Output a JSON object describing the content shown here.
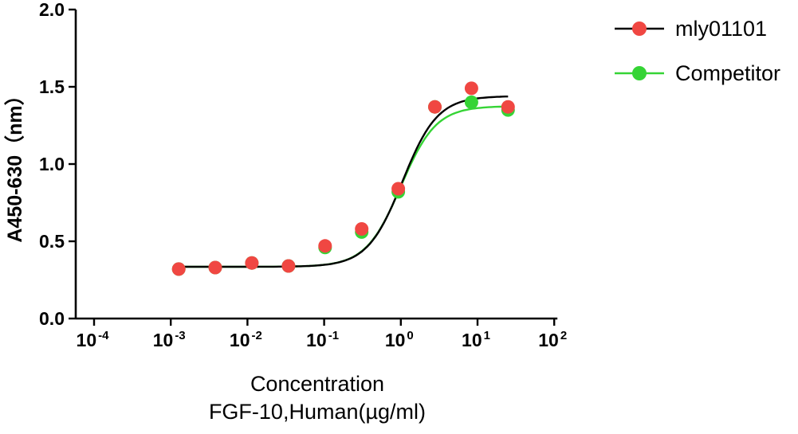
{
  "chart_data": {
    "type": "scatter",
    "title": "",
    "xlabel_line1": "Concentration",
    "xlabel_line2": "FGF-10,Human(µg/ml)",
    "ylabel": "A450-630（nm）",
    "x_scale": "log10",
    "x_min_exp": -4,
    "x_max_exp": 2,
    "x_tick_exponents": [
      -4,
      -3,
      -2,
      -1,
      0,
      1,
      2
    ],
    "ylim": [
      0,
      2
    ],
    "y_ticks": [
      0,
      0.5,
      1,
      1.5,
      2
    ],
    "grid": false,
    "legend_position": "top-right",
    "x": [
      0.00127,
      0.0038,
      0.0114,
      0.0343,
      0.103,
      0.309,
      0.926,
      2.778,
      8.333,
      25
    ],
    "series": [
      {
        "name": "mly01101",
        "marker_color": "#f04742",
        "line_color": "#000000",
        "values": [
          0.32,
          0.33,
          0.36,
          0.34,
          0.47,
          0.58,
          0.84,
          1.37,
          1.49,
          1.37
        ],
        "fit_4pl": {
          "bottom": 0.335,
          "top": 1.44,
          "ec50": 1.05,
          "hill": 1.9
        }
      },
      {
        "name": "Competitor",
        "marker_color": "#35d435",
        "line_color": "#35d435",
        "values": [
          0.32,
          0.33,
          0.36,
          0.34,
          0.46,
          0.56,
          0.82,
          1.37,
          1.4,
          1.35
        ],
        "fit_4pl": {
          "bottom": 0.335,
          "top": 1.375,
          "ec50": 1.0,
          "hill": 1.9
        }
      }
    ],
    "curve_x_range": [
      0.0012,
      25
    ]
  }
}
